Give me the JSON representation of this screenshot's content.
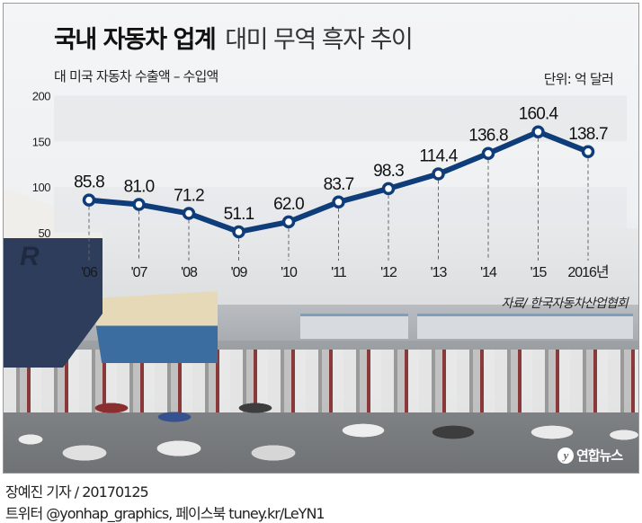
{
  "header": {
    "title_bold": "국내 자동차 업계",
    "title_light": "대미 무역 흑자 추이",
    "subtitle": "대 미국 자동차 수출액 – 수입액",
    "unit": "단위: 억 달러"
  },
  "source": "자료/ 한국자동차산업협회",
  "logo": {
    "mark": "y",
    "text": "연합뉴스"
  },
  "footer": {
    "byline": "장예진 기자 / 20170125",
    "social": "트위터 @yonhap_graphics, 페이스북 tuney.kr/LeYN1"
  },
  "colors": {
    "line": "#0f3d7a",
    "marker_fill": "#ffffff",
    "band": "#e6e7e9"
  },
  "chart_data": {
    "type": "line",
    "title": "국내 자동차 업계 대미 무역 흑자 추이",
    "subtitle": "대 미국 자동차 수출액 – 수입액",
    "xlabel": "",
    "ylabel": "단위: 억 달러",
    "categories": [
      "'06",
      "'07",
      "'08",
      "'09",
      "'10",
      "'11",
      "'12",
      "'13",
      "'14",
      "'15",
      "2016년"
    ],
    "series": [
      {
        "name": "대미 무역 흑자",
        "values": [
          85.8,
          81.0,
          71.2,
          51.1,
          62.0,
          83.7,
          98.3,
          114.4,
          136.8,
          160.4,
          138.7
        ]
      }
    ],
    "value_labels": [
      "85.8",
      "81.0",
      "71.2",
      "51.1",
      "62.0",
      "83.7",
      "98.3",
      "114.4",
      "136.8",
      "160.4",
      "138.7"
    ],
    "yticks": [
      "200",
      "150",
      "100",
      "50"
    ],
    "ylim": [
      0,
      200
    ],
    "grid": "alternating horizontal bands",
    "legend": "none",
    "source": "자료/ 한국자동차산업협회"
  }
}
